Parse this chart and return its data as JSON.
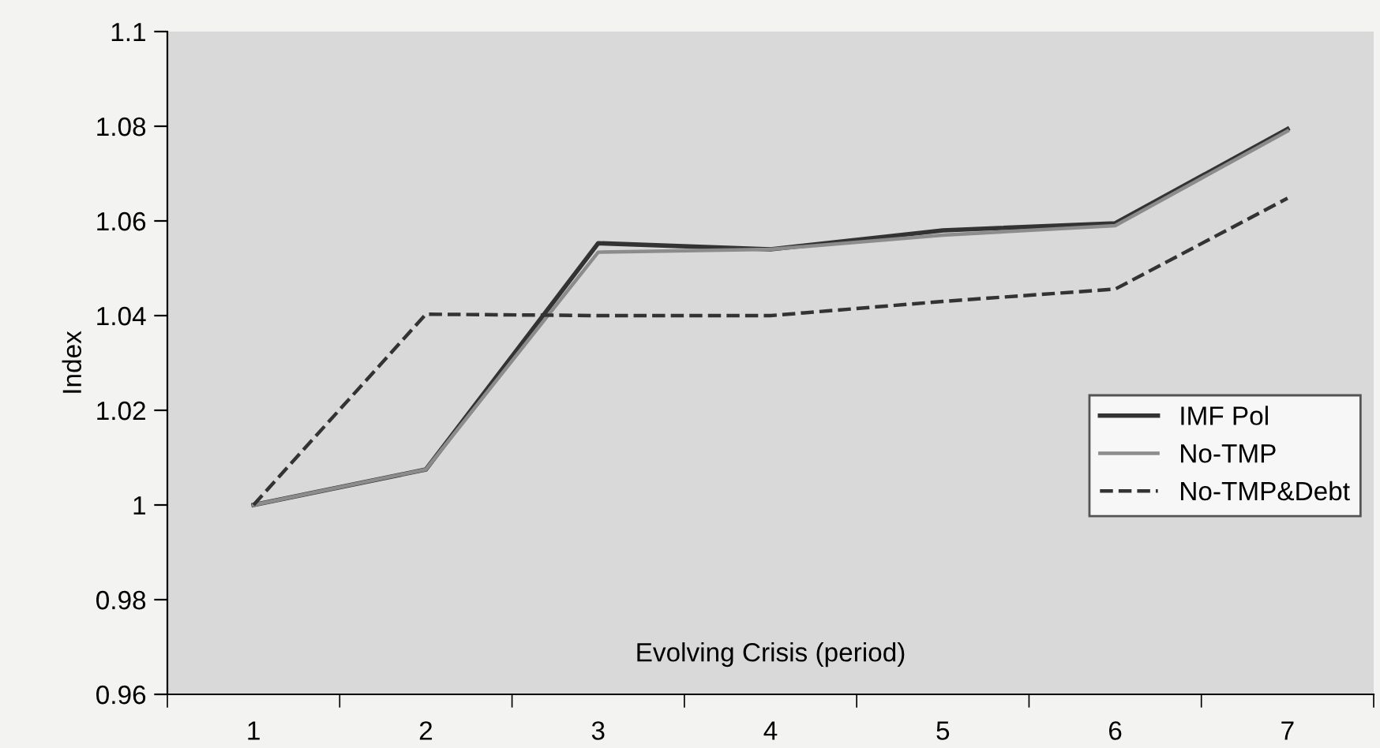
{
  "chart_data": {
    "type": "line",
    "xlabel": "Evolving Crisis (period)",
    "ylabel": "Index",
    "categories": [
      "1",
      "2",
      "3",
      "4",
      "5",
      "6",
      "7"
    ],
    "series": [
      {
        "name": "IMF Pol",
        "color": "#333333",
        "line_style": "solid",
        "values": [
          1,
          1.0075,
          1.0553,
          1.054,
          1.058,
          1.0595,
          1.0794
        ]
      },
      {
        "name": "No-TMP",
        "color": "#8c8c8c",
        "line_style": "solid",
        "values": [
          1,
          1.0075,
          1.0534,
          1.054,
          1.057,
          1.059,
          1.079
        ]
      },
      {
        "name": "No-TMP&Debt",
        "color": "#333333",
        "line_style": "dashed",
        "values": [
          1,
          1.0403,
          1.04,
          1.04,
          1.043,
          1.0456,
          1.0648
        ]
      }
    ],
    "ylim": [
      0.96,
      1.1
    ],
    "yticks": [
      0.96,
      0.98,
      1,
      1.02,
      1.04,
      1.06,
      1.08,
      1.1
    ],
    "grid": false,
    "legend": "right",
    "marker": "none"
  }
}
